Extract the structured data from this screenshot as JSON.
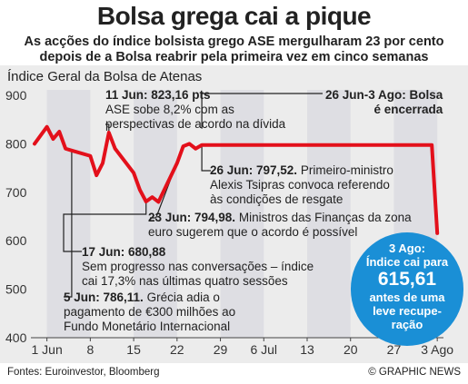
{
  "title": "Bolsa grega cai a pique",
  "subtitle_line1": "As acções do índice bolsista grego ASE mergulharam 23 por cento",
  "subtitle_line2": "depois de a Bolsa reabrir pela primeira vez em cinco semanas",
  "panel_title": "Índice Geral da Bolsa de Atenas",
  "source": "Fontes: Euroinvestor, Bloomberg",
  "credit": "© GRAPHIC NEWS",
  "colors": {
    "line": "#e3101b",
    "callout": "#1a8fd6",
    "band": "#d3d3dc",
    "panel": "#ececec"
  },
  "annotations": {
    "jun11_head": "11 Jun: 823,16 pts",
    "jun11_l1": "ASE sobe 8,2% com as",
    "jun11_l2": "perspectivas de acordo na dívida",
    "closed_l1": "26 Jun-3 Ago: Bolsa",
    "closed_l2": "é encerrada",
    "jun26_head": "26 Jun: 797,52.",
    "jun26_l1": "Primeiro-ministro",
    "jun26_l2": "Alexis Tsipras convoca referendo",
    "jun26_l3": "às condições de resgate",
    "jun23_head": "23 Jun: 794,98.",
    "jun23_l1": "Ministros das Finanças da zona",
    "jun23_l2": "euro sugerem que o acordo é possível",
    "jun17_head": "17 Jun: 680,88",
    "jun17_l1": "Sem progresso nas conversações – índice",
    "jun17_l2": "cai 17,3% nas últimas quatro sessões",
    "jun5_head": "5 Jun: 786,11.",
    "jun5_l1": "Grécia adia o",
    "jun5_l2": "pagamento de €300 milhões ao",
    "jun5_l3": "Fundo Monetário Internacional"
  },
  "callout": {
    "l1": "3 Ago:",
    "l2": "Índice cai para",
    "value": "615,61",
    "l3": "antes de uma",
    "l4": "leve recupe-",
    "l5": "ração"
  },
  "chart_data": {
    "type": "line",
    "title": "Índice Geral da Bolsa de Atenas",
    "xlabel": "",
    "ylabel": "",
    "ylim": [
      400,
      900
    ],
    "y_ticks": [
      400,
      500,
      600,
      700,
      800,
      900
    ],
    "x_tick_labels": [
      "1 Jun",
      "8",
      "15",
      "22",
      "29",
      "6 Jul",
      "13",
      "20",
      "27",
      "3 Ago"
    ],
    "x_tick_days": [
      1,
      8,
      15,
      22,
      29,
      36,
      43,
      50,
      57,
      64
    ],
    "x_range_days": [
      -1,
      65
    ],
    "grid": false,
    "series": [
      {
        "dates": [
          "29 Mai",
          "1 Jun",
          "2 Jun",
          "3 Jun",
          "4 Jun",
          "5 Jun",
          "8 Jun",
          "9 Jun",
          "10 Jun",
          "11 Jun",
          "12 Jun",
          "15 Jun",
          "16 Jun",
          "17 Jun",
          "18 Jun",
          "19 Jun",
          "22 Jun",
          "23 Jun",
          "24 Jun",
          "25 Jun",
          "26 Jun",
          "3 Ago"
        ],
        "days": [
          -1,
          1,
          2,
          3,
          4,
          5,
          8,
          9,
          10,
          11,
          12,
          15,
          16,
          17,
          18,
          19,
          22,
          23,
          24,
          25,
          26,
          64
        ],
        "values": [
          800,
          835,
          810,
          825,
          790,
          786.11,
          775,
          735,
          760,
          823.16,
          790,
          740,
          705,
          680.88,
          690,
          680,
          760,
          794.98,
          800,
          790,
          797.52,
          615.61
        ]
      }
    ]
  }
}
